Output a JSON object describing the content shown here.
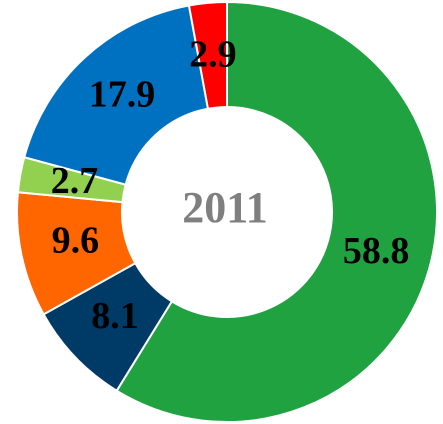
{
  "chart_data": {
    "type": "donut",
    "center_label": "2011",
    "values": [
      58.8,
      8.1,
      9.6,
      2.7,
      17.9,
      2.9
    ],
    "colors": [
      "#1fa23f",
      "#003a66",
      "#ff6600",
      "#92d050",
      "#0070c0",
      "#ff0000"
    ]
  }
}
